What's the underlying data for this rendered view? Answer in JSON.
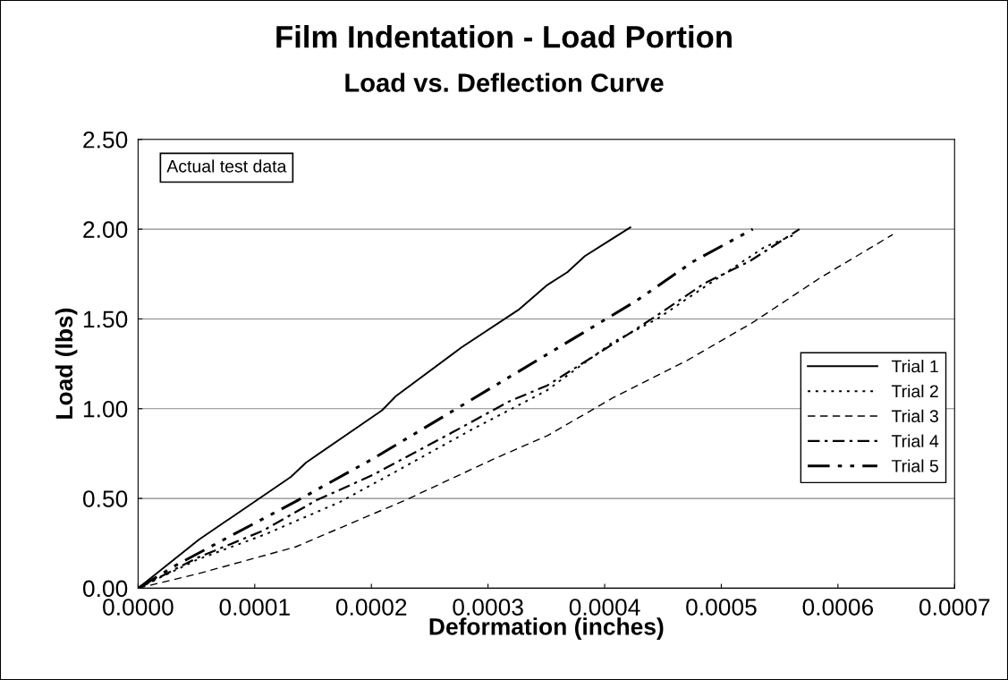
{
  "chart_data": {
    "type": "line",
    "title": "Film Indentation - Load Portion",
    "subtitle": "Load vs. Deflection Curve",
    "xlabel": "Deformation (inches)",
    "ylabel": "Load (lbs)",
    "annotations": [
      "Actual test data"
    ],
    "series": [
      {
        "name": "Trial 1",
        "color": "#000000",
        "line_style": "solid",
        "x": [
          0,
          5.2e-05,
          0.000131,
          0.000144,
          0.000209,
          0.000221,
          0.000277,
          0.000326,
          0.000351,
          0.000368,
          0.000383,
          0.000405,
          0.000422
        ],
        "values": [
          0,
          0.27,
          0.62,
          0.7,
          0.99,
          1.07,
          1.34,
          1.55,
          1.69,
          1.76,
          1.85,
          1.94,
          2.01
        ]
      },
      {
        "name": "Trial 2",
        "color": "#000000",
        "line_style": "dotted",
        "x": [
          0,
          5.1e-05,
          0.000109,
          0.000173,
          0.000221,
          0.000285,
          0.00035,
          0.000407,
          0.000445,
          0.000486,
          0.000537,
          0.000563
        ],
        "values": [
          0,
          0.16,
          0.3,
          0.48,
          0.65,
          0.88,
          1.1,
          1.37,
          1.5,
          1.68,
          1.9,
          1.97
        ]
      },
      {
        "name": "Trial 3",
        "color": "#000000",
        "line_style": "dashed",
        "x": [
          0,
          5.1e-05,
          0.000135,
          0.000229,
          0.000305,
          0.000351,
          0.000407,
          0.000471,
          0.000527,
          0.000585,
          0.000647
        ],
        "values": [
          0,
          0.08,
          0.23,
          0.49,
          0.72,
          0.85,
          1.06,
          1.27,
          1.48,
          1.73,
          1.97
        ]
      },
      {
        "name": "Trial 4",
        "color": "#000000",
        "line_style": "dashdot",
        "x": [
          0,
          5.1e-05,
          0.000107,
          0.000153,
          0.000201,
          0.00027,
          0.000318,
          0.000351,
          0.000412,
          0.000445,
          0.000486,
          0.000524,
          0.000567
        ],
        "values": [
          0,
          0.17,
          0.32,
          0.49,
          0.63,
          0.87,
          1.04,
          1.13,
          1.38,
          1.52,
          1.7,
          1.82,
          2.0
        ]
      },
      {
        "name": "Trial 5",
        "color": "#000000",
        "line_style": "dashdotdot",
        "x": [
          0,
          3.3e-05,
          8.2e-05,
          0.000137,
          0.000201,
          0.000273,
          0.00035,
          0.000427,
          0.000476,
          0.000527
        ],
        "values": [
          0,
          0.13,
          0.3,
          0.49,
          0.72,
          1.0,
          1.3,
          1.6,
          1.82,
          2.0
        ]
      }
    ],
    "xlim": [
      0,
      0.0007
    ],
    "xticks": [
      {
        "value": 0,
        "label": "0.0000"
      },
      {
        "value": 0.0001,
        "label": "0.0001"
      },
      {
        "value": 0.0002,
        "label": "0.0002"
      },
      {
        "value": 0.0003,
        "label": "0.0003"
      },
      {
        "value": 0.0004,
        "label": "0.0004"
      },
      {
        "value": 0.0005,
        "label": "0.0005"
      },
      {
        "value": 0.0006,
        "label": "0.0006"
      },
      {
        "value": 0.0007,
        "label": "0.0007"
      }
    ],
    "ylim": [
      0,
      2.5
    ],
    "yticks": [
      {
        "value": 0,
        "label": "0.00"
      },
      {
        "value": 0.5,
        "label": "0.50"
      },
      {
        "value": 1,
        "label": "1.00"
      },
      {
        "value": 1.5,
        "label": "1.50"
      },
      {
        "value": 2,
        "label": "2.00"
      },
      {
        "value": 2.5,
        "label": "2.50"
      }
    ],
    "grid": "y",
    "legend": "right"
  }
}
